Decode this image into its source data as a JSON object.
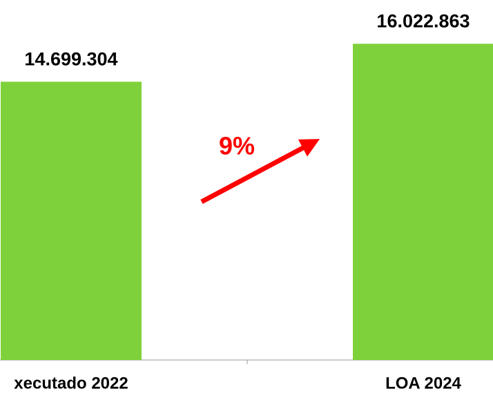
{
  "chart_data": {
    "type": "bar",
    "categories": [
      "xecutado 2022",
      "LOA 2024"
    ],
    "values": [
      14699304,
      16022863
    ],
    "value_labels": [
      "14.699.304",
      "16.022.863"
    ],
    "color": "#7fd13b",
    "ylim": [
      5000000,
      17500000
    ],
    "annotation": "9%"
  }
}
